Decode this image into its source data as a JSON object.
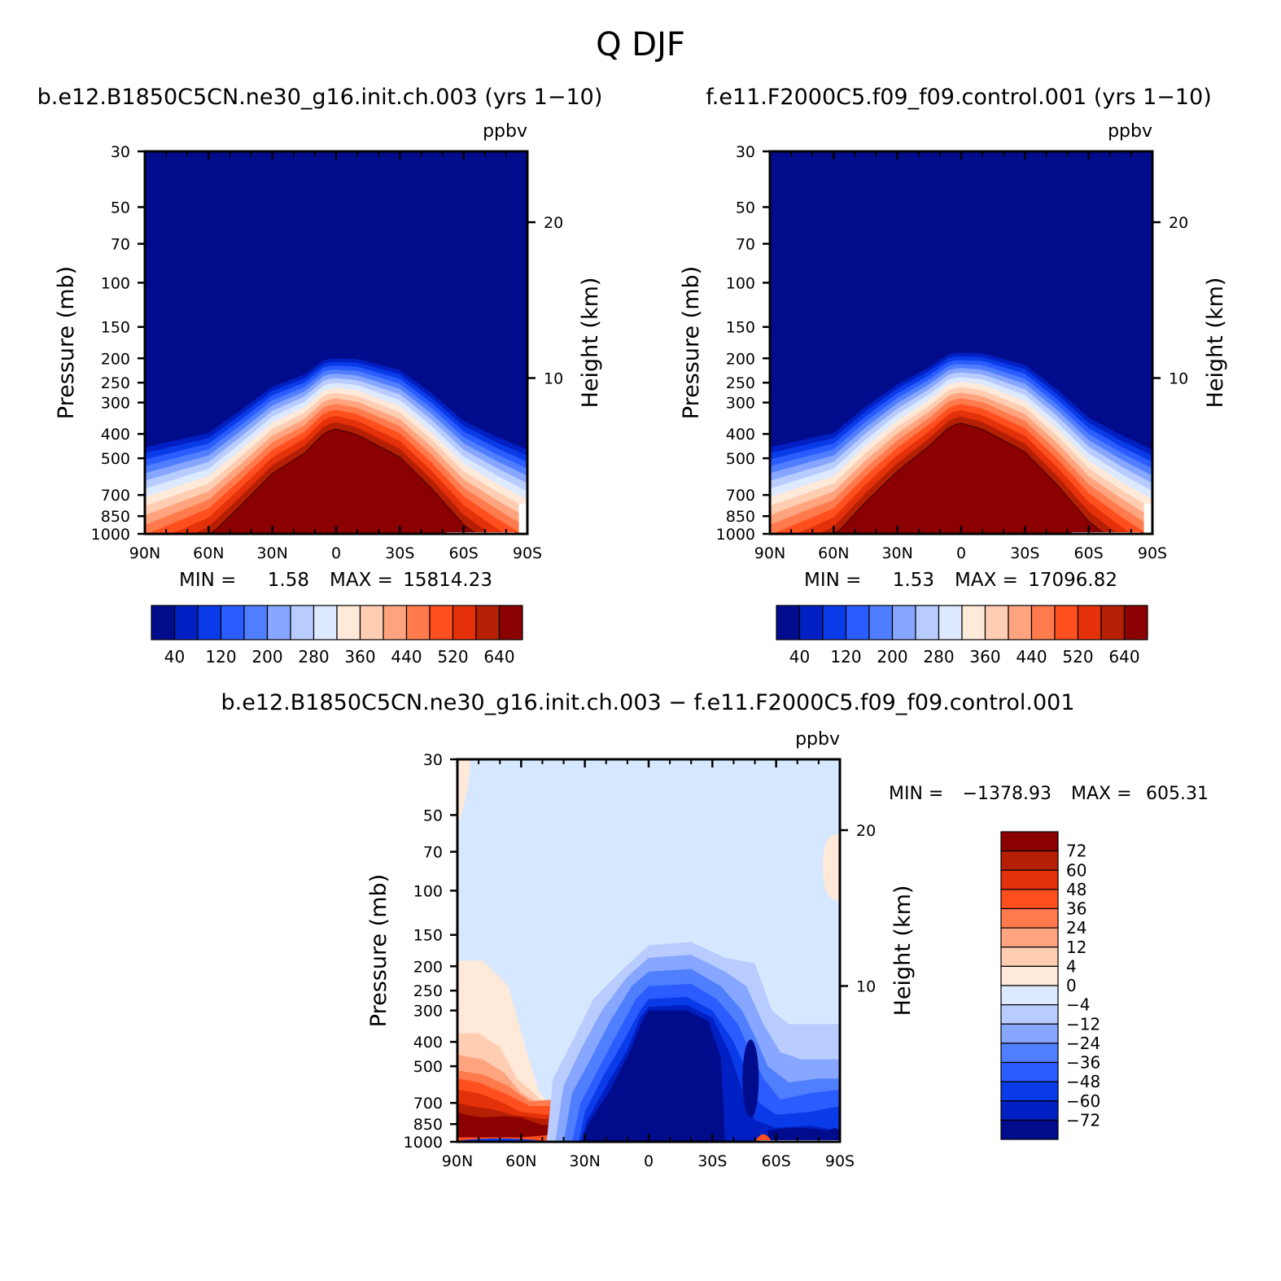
{
  "figure": {
    "title": "Q DJF"
  },
  "chart_data": [
    {
      "type": "contour",
      "title": "b.e12.B1850C5CN.ne30_g16.init.ch.003 (yrs 1−10)",
      "units": "ppbv",
      "ylabel": "Pressure (mb)",
      "ylabel2": "Height (km)",
      "pressure_ticks": [
        "30",
        "50",
        "70",
        "100",
        "150",
        "200",
        "250",
        "300",
        "400",
        "500",
        "700",
        "850",
        "1000"
      ],
      "pressure_values": [
        30,
        50,
        70,
        100,
        150,
        200,
        250,
        300,
        400,
        500,
        700,
        850,
        1000
      ],
      "height_ticks": [
        "20",
        "10"
      ],
      "height_values": [
        20,
        10
      ],
      "lat_ticks": [
        "90N",
        "60N",
        "30N",
        "0",
        "30S",
        "60S",
        "90S"
      ],
      "stats": {
        "min_label": "MIN =",
        "min": "1.58",
        "max_label": "MAX =",
        "max": "15814.23"
      },
      "levels": [
        40,
        120,
        200,
        280,
        360,
        440,
        520,
        640
      ],
      "colorbar_labels": [
        "40",
        "120",
        "200",
        "280",
        "360",
        "440",
        "520",
        "640"
      ],
      "colors": [
        "#000c8b",
        "#0020c4",
        "#0a3be8",
        "#2a5cff",
        "#4f7eff",
        "#87a6ff",
        "#b8ccff",
        "#dde9ff",
        "#ffe9d8",
        "#ffcdb2",
        "#ffa47e",
        "#ff7a4d",
        "#ff4f1f",
        "#e5310a",
        "#b51f04",
        "#8b0000"
      ],
      "tropopause_profile": [
        {
          "lat": 90,
          "p": 430
        },
        {
          "lat": 60,
          "p": 380
        },
        {
          "lat": 45,
          "p": 310
        },
        {
          "lat": 30,
          "p": 250
        },
        {
          "lat": 15,
          "p": 225
        },
        {
          "lat": 5,
          "p": 195
        },
        {
          "lat": -10,
          "p": 195
        },
        {
          "lat": -30,
          "p": 215
        },
        {
          "lat": -45,
          "p": 265
        },
        {
          "lat": -60,
          "p": 340
        },
        {
          "lat": -75,
          "p": 390
        },
        {
          "lat": -90,
          "p": 440
        }
      ]
    },
    {
      "type": "contour",
      "title": "f.e11.F2000C5.f09_f09.control.001 (yrs 1−10)",
      "units": "ppbv",
      "ylabel": "Pressure (mb)",
      "ylabel2": "Height (km)",
      "pressure_ticks": [
        "30",
        "50",
        "70",
        "100",
        "150",
        "200",
        "250",
        "300",
        "400",
        "500",
        "700",
        "850",
        "1000"
      ],
      "pressure_values": [
        30,
        50,
        70,
        100,
        150,
        200,
        250,
        300,
        400,
        500,
        700,
        850,
        1000
      ],
      "height_ticks": [
        "20",
        "10"
      ],
      "height_values": [
        20,
        10
      ],
      "lat_ticks": [
        "90N",
        "60N",
        "30N",
        "0",
        "30S",
        "60S",
        "90S"
      ],
      "stats": {
        "min_label": "MIN =",
        "min": "1.53",
        "max_label": "MAX =",
        "max": "17096.82"
      },
      "levels": [
        40,
        120,
        200,
        280,
        360,
        440,
        520,
        640
      ],
      "colorbar_labels": [
        "40",
        "120",
        "200",
        "280",
        "360",
        "440",
        "520",
        "640"
      ],
      "colors": [
        "#000c8b",
        "#0020c4",
        "#0a3be8",
        "#2a5cff",
        "#4f7eff",
        "#87a6ff",
        "#b8ccff",
        "#dde9ff",
        "#ffe9d8",
        "#ffcdb2",
        "#ffa47e",
        "#ff7a4d",
        "#ff4f1f",
        "#e5310a",
        "#b51f04",
        "#8b0000"
      ],
      "tropopause_profile": [
        {
          "lat": 90,
          "p": 430
        },
        {
          "lat": 60,
          "p": 380
        },
        {
          "lat": 45,
          "p": 300
        },
        {
          "lat": 30,
          "p": 245
        },
        {
          "lat": 15,
          "p": 210
        },
        {
          "lat": 5,
          "p": 185
        },
        {
          "lat": -10,
          "p": 185
        },
        {
          "lat": -30,
          "p": 205
        },
        {
          "lat": -45,
          "p": 255
        },
        {
          "lat": -60,
          "p": 330
        },
        {
          "lat": -75,
          "p": 385
        },
        {
          "lat": -90,
          "p": 440
        }
      ]
    },
    {
      "type": "contour",
      "title": "b.e12.B1850C5CN.ne30_g16.init.ch.003 − f.e11.F2000C5.f09_f09.control.001",
      "units": "ppbv",
      "ylabel": "Pressure (mb)",
      "ylabel2": "Height (km)",
      "pressure_ticks": [
        "30",
        "50",
        "70",
        "100",
        "150",
        "200",
        "250",
        "300",
        "400",
        "500",
        "700",
        "850",
        "1000"
      ],
      "pressure_values": [
        30,
        50,
        70,
        100,
        150,
        200,
        250,
        300,
        400,
        500,
        700,
        850,
        1000
      ],
      "height_ticks": [
        "20",
        "10"
      ],
      "height_values": [
        20,
        10
      ],
      "lat_ticks": [
        "90N",
        "60N",
        "30N",
        "0",
        "30S",
        "60S",
        "90S"
      ],
      "stats": {
        "min_label": "MIN =",
        "min": "−1378.93",
        "max_label": "MAX =",
        "max": "605.31"
      },
      "levels": [
        72,
        60,
        48,
        36,
        24,
        12,
        4,
        0,
        -4,
        -12,
        -24,
        -36,
        -48,
        -60,
        -72
      ],
      "colorbar_labels": [
        "72",
        "60",
        "48",
        "36",
        "24",
        "12",
        "4",
        "0",
        "−4",
        "−12",
        "−24",
        "−36",
        "−48",
        "−60",
        "−72"
      ],
      "colors": [
        "#8b0000",
        "#b51f04",
        "#e5310a",
        "#ff4f1f",
        "#ff7a4d",
        "#ffa47e",
        "#ffcdb2",
        "#ffe9d8",
        "#dde9ff",
        "#b8ccff",
        "#87a6ff",
        "#4f7eff",
        "#2a5cff",
        "#0a3be8",
        "#0020c4",
        "#000c8b"
      ],
      "background_color": "#d6e8ff"
    }
  ]
}
